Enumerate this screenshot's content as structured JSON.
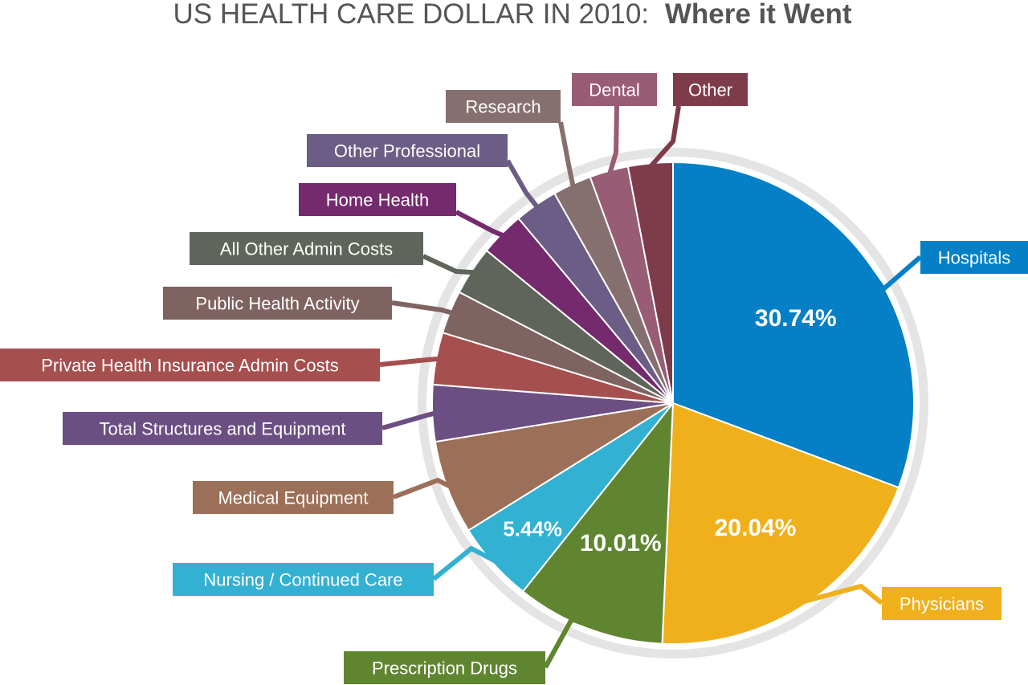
{
  "chart_data": {
    "type": "pie",
    "title": "US HEALTH CARE DOLLAR IN 2010:",
    "title_emphasis": "Where it Went",
    "slices": [
      {
        "label": "Hospitals",
        "value": 30.74,
        "value_label": "30.74%",
        "color": "#0580c6"
      },
      {
        "label": "Physicians",
        "value": 20.04,
        "value_label": "20.04%",
        "color": "#f0b01c"
      },
      {
        "label": "Prescription Drugs",
        "value": 10.01,
        "value_label": "10.01%",
        "color": "#608530"
      },
      {
        "label": "Nursing / Continued Care",
        "value": 5.44,
        "value_label": "5.44%",
        "color": "#33b1d2"
      },
      {
        "label": "Medical Equipment",
        "value": 6.3,
        "value_label": "",
        "color": "#9c6f58"
      },
      {
        "label": "Total Structures and Equipment",
        "value": 3.8,
        "value_label": "",
        "color": "#6b4e82"
      },
      {
        "label": "Private Health Insurance Admin Costs",
        "value": 3.5,
        "value_label": "",
        "color": "#a64f4f"
      },
      {
        "label": "Public Health Activity",
        "value": 2.9,
        "value_label": "",
        "color": "#7e6360"
      },
      {
        "label": "All Other Admin Costs",
        "value": 3.3,
        "value_label": "",
        "color": "#5f655a"
      },
      {
        "label": "Home Health",
        "value": 3.0,
        "value_label": "",
        "color": "#742a6d"
      },
      {
        "label": "Other Professional",
        "value": 2.9,
        "value_label": "",
        "color": "#6b5d85"
      },
      {
        "label": "Research",
        "value": 2.6,
        "value_label": "",
        "color": "#86706f"
      },
      {
        "label": "Dental",
        "value": 2.6,
        "value_label": "",
        "color": "#985c75"
      },
      {
        "label": "Other",
        "value": 3.0,
        "value_label": "",
        "color": "#7e3b4a"
      }
    ]
  },
  "colors": {
    "title_text": "#555555",
    "ring": "#e4e4e4",
    "slice_border": "#ffffff",
    "label_text": "#ffffff"
  }
}
